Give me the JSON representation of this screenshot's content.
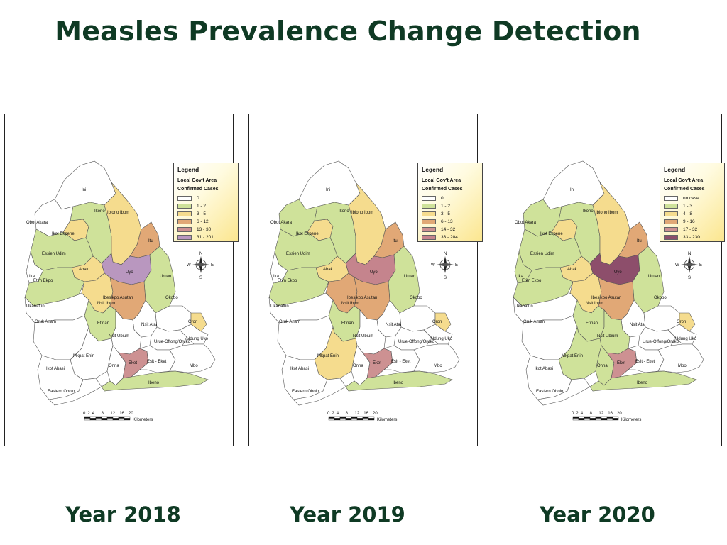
{
  "title": "Measles Prevalence Change Detection",
  "colors": {
    "white": "#ffffff",
    "green": "#cfe29a",
    "yellow": "#f5dc8e",
    "orange": "#e1a876",
    "rose": "#cd9192",
    "purple": "#b997bf",
    "plum": "#8d4e6b",
    "title_green": "#0f3a24"
  },
  "scale": {
    "ticks": [
      "0",
      "2",
      "4",
      "8",
      "12",
      "16",
      "20"
    ],
    "unit": "Kilometers"
  },
  "compass": {
    "n": "N",
    "s": "S",
    "e": "E",
    "w": "W"
  },
  "maps": [
    {
      "year_label": "Year 2018",
      "legend": {
        "title": "Legend",
        "subtitle_1": "Local Gov't Area",
        "subtitle_2": "Confirmed Cases",
        "classes": [
          {
            "label": "0",
            "color": "#ffffff"
          },
          {
            "label": "1 - 2",
            "color": "#cfe29a"
          },
          {
            "label": "3 - 5",
            "color": "#f5dc8e"
          },
          {
            "label": "6 - 12",
            "color": "#e1a876"
          },
          {
            "label": "13 - 30",
            "color": "#cd9192"
          },
          {
            "label": "31 - 201",
            "color": "#b997bf"
          }
        ]
      },
      "regions": {
        "Ini": "#ffffff",
        "Obot Akara": "#ffffff",
        "Ikono": "#cfe29a",
        "Ibiono Ibom": "#f5dc8e",
        "Itu": "#e1a876",
        "Ikot Ekpene": "#f5dc8e",
        "Essien Udim": "#cfe29a",
        "Abak": "#f5dc8e",
        "Uyo": "#b997bf",
        "Uruan": "#cfe29a",
        "Ika": "#ffffff",
        "Etim Ekpo": "#cfe29a",
        "Ibesikpo Asutan": "#e1a876",
        "Nsit Ibom": "#f5dc8e",
        "Ukanafun": "#ffffff",
        "Oruk Anam": "#ffffff",
        "Etinan": "#cfe29a",
        "Nsit Atai": "#ffffff",
        "Okobo": "#ffffff",
        "Oron": "#f5dc8e",
        "Nsit Ubium": "#ffffff",
        "Udung Uko": "#ffffff",
        "Urue-Offong/Oruko": "#ffffff",
        "Mkpat Enin": "#ffffff",
        "Ikot Abasi": "#ffffff",
        "Onna": "#ffffff",
        "Eket": "#cd9192",
        "Esit - Eket": "#ffffff",
        "Mbo": "#ffffff",
        "Eastern Obolo": "#ffffff",
        "Ibeno": "#cfe29a"
      }
    },
    {
      "year_label": "Year 2019",
      "legend": {
        "title": "Legend",
        "subtitle_1": "Local Gov't Area",
        "subtitle_2": "Confirmed Cases",
        "classes": [
          {
            "label": "0",
            "color": "#ffffff"
          },
          {
            "label": "1 - 2",
            "color": "#cfe29a"
          },
          {
            "label": "3 - 5",
            "color": "#f5dc8e"
          },
          {
            "label": "6 - 13",
            "color": "#e1a876"
          },
          {
            "label": "14 - 32",
            "color": "#cd9192"
          },
          {
            "label": "33 - 204",
            "color": "#c5848d"
          }
        ]
      },
      "regions": {
        "Ini": "#ffffff",
        "Obot Akara": "#cfe29a",
        "Ikono": "#cfe29a",
        "Ibiono Ibom": "#f5dc8e",
        "Itu": "#e1a876",
        "Ikot Ekpene": "#f5dc8e",
        "Essien Udim": "#cfe29a",
        "Abak": "#f5dc8e",
        "Uyo": "#c5848d",
        "Uruan": "#cfe29a",
        "Ika": "#ffffff",
        "Etim Ekpo": "#cfe29a",
        "Ibesikpo Asutan": "#e1a876",
        "Nsit Ibom": "#e1a876",
        "Ukanafun": "#ffffff",
        "Oruk Anam": "#ffffff",
        "Etinan": "#cfe29a",
        "Nsit Atai": "#ffffff",
        "Okobo": "#ffffff",
        "Oron": "#f5dc8e",
        "Nsit Ubium": "#ffffff",
        "Udung Uko": "#ffffff",
        "Urue-Offong/Oruko": "#ffffff",
        "Mkpat Enin": "#f5dc8e",
        "Ikot Abasi": "#ffffff",
        "Onna": "#ffffff",
        "Eket": "#cd9192",
        "Esit - Eket": "#ffffff",
        "Mbo": "#ffffff",
        "Eastern Obolo": "#ffffff",
        "Ibeno": "#cfe29a"
      }
    },
    {
      "year_label": "Year 2020",
      "legend": {
        "title": "Legend",
        "subtitle_1": "Local Gov't Area",
        "subtitle_2": "Confirmed Cases",
        "classes": [
          {
            "label": "no case",
            "color": "#ffffff"
          },
          {
            "label": "1 - 3",
            "color": "#cfe29a"
          },
          {
            "label": "4 - 8",
            "color": "#f5dc8e"
          },
          {
            "label": "9 - 16",
            "color": "#e1a876"
          },
          {
            "label": "17 - 32",
            "color": "#cd9192"
          },
          {
            "label": "33 - 230",
            "color": "#8d4e6b"
          }
        ]
      },
      "regions": {
        "Ini": "#ffffff",
        "Obot Akara": "#cfe29a",
        "Ikono": "#cfe29a",
        "Ibiono Ibom": "#f5dc8e",
        "Itu": "#e1a876",
        "Ikot Ekpene": "#f5dc8e",
        "Essien Udim": "#cfe29a",
        "Abak": "#f5dc8e",
        "Uyo": "#8d4e6b",
        "Uruan": "#cfe29a",
        "Ika": "#cfe29a",
        "Etim Ekpo": "#cfe29a",
        "Ibesikpo Asutan": "#e1a876",
        "Nsit Ibom": "#f5dc8e",
        "Ukanafun": "#ffffff",
        "Oruk Anam": "#ffffff",
        "Etinan": "#cfe29a",
        "Nsit Atai": "#ffffff",
        "Okobo": "#ffffff",
        "Oron": "#f5dc8e",
        "Nsit Ubium": "#cfe29a",
        "Udung Uko": "#ffffff",
        "Urue-Offong/Oruko": "#ffffff",
        "Mkpat Enin": "#cfe29a",
        "Ikot Abasi": "#ffffff",
        "Onna": "#cfe29a",
        "Eket": "#cd9192",
        "Esit - Eket": "#ffffff",
        "Mbo": "#ffffff",
        "Eastern Obolo": "#ffffff",
        "Ibeno": "#cfe29a"
      }
    }
  ]
}
